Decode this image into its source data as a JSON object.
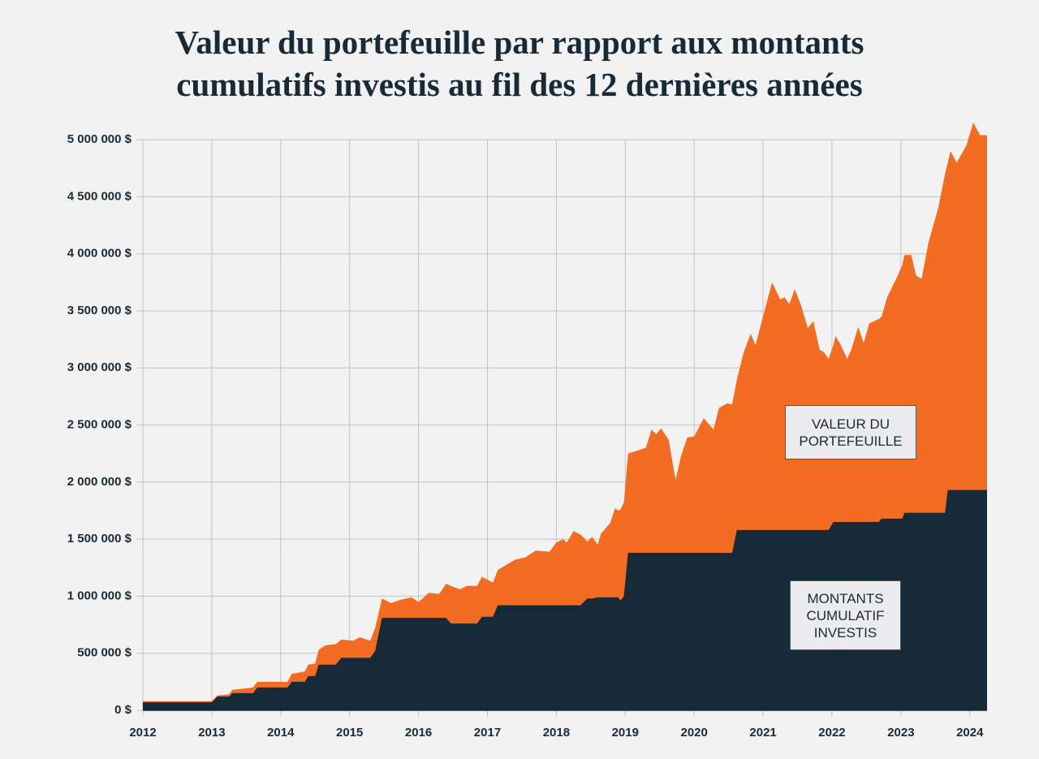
{
  "chart_data": {
    "type": "area",
    "title": "Valeur du portefeuille par rapport aux montants cumulatifs investis au fil des 12 dernières années",
    "x": [
      2012.0,
      2013.0,
      2013.08,
      2013.25,
      2013.3,
      2013.6,
      2013.66,
      2014.1,
      2014.16,
      2014.35,
      2014.4,
      2014.5,
      2014.55,
      2014.65,
      2014.8,
      2014.88,
      2015.05,
      2015.15,
      2015.3,
      2015.37,
      2015.47,
      2015.6,
      2015.75,
      2015.9,
      2016.0,
      2016.15,
      2016.3,
      2016.4,
      2016.47,
      2016.6,
      2016.7,
      2016.85,
      2016.92,
      2017.08,
      2017.15,
      2017.4,
      2017.55,
      2017.7,
      2017.9,
      2018.0,
      2018.1,
      2018.15,
      2018.25,
      2018.35,
      2018.45,
      2018.52,
      2018.6,
      2018.65,
      2018.78,
      2018.85,
      2018.9,
      2018.93,
      2018.98,
      2019.04,
      2019.3,
      2019.38,
      2019.45,
      2019.52,
      2019.63,
      2019.73,
      2019.81,
      2019.9,
      2020.0,
      2020.14,
      2020.28,
      2020.36,
      2020.48,
      2020.55,
      2020.62,
      2020.72,
      2020.82,
      2020.89,
      2021.13,
      2021.25,
      2021.31,
      2021.38,
      2021.46,
      2021.55,
      2021.65,
      2021.73,
      2021.82,
      2021.88,
      2021.95,
      2022.02,
      2022.05,
      2022.13,
      2022.22,
      2022.28,
      2022.38,
      2022.46,
      2022.54,
      2022.68,
      2022.72,
      2022.8,
      2022.93,
      2023.02,
      2023.05,
      2023.15,
      2023.22,
      2023.3,
      2023.4,
      2023.54,
      2023.64,
      2023.68,
      2023.72,
      2023.81,
      2023.95,
      2024.05,
      2024.15,
      2024.25
    ],
    "series": [
      {
        "name": "VALEUR DU PORTEFEUILLE",
        "color": "#f26d21",
        "values": [
          80000,
          80000,
          130000,
          140000,
          180000,
          200000,
          250000,
          250000,
          320000,
          340000,
          400000,
          410000,
          530000,
          570000,
          580000,
          620000,
          610000,
          640000,
          610000,
          720000,
          980000,
          940000,
          970000,
          990000,
          950000,
          1030000,
          1020000,
          1110000,
          1090000,
          1060000,
          1090000,
          1090000,
          1170000,
          1120000,
          1230000,
          1320000,
          1340000,
          1400000,
          1390000,
          1470000,
          1500000,
          1470000,
          1570000,
          1540000,
          1480000,
          1520000,
          1450000,
          1550000,
          1640000,
          1770000,
          1750000,
          1760000,
          1820000,
          2250000,
          2300000,
          2460000,
          2420000,
          2470000,
          2370000,
          2020000,
          2230000,
          2390000,
          2400000,
          2560000,
          2460000,
          2650000,
          2690000,
          2680000,
          2900000,
          3140000,
          3300000,
          3200000,
          3750000,
          3600000,
          3620000,
          3560000,
          3690000,
          3550000,
          3350000,
          3410000,
          3160000,
          3140000,
          3080000,
          3200000,
          3280000,
          3200000,
          3080000,
          3160000,
          3360000,
          3220000,
          3390000,
          3430000,
          3450000,
          3620000,
          3780000,
          3900000,
          3990000,
          3990000,
          3810000,
          3780000,
          4100000,
          4400000,
          4700000,
          4800000,
          4900000,
          4800000,
          4950000,
          5150000,
          5040000,
          5040000
        ]
      },
      {
        "name": "MONTANTS CUMULATIF INVESTIS",
        "color": "#172a38",
        "values": [
          70000,
          70000,
          120000,
          120000,
          150000,
          150000,
          200000,
          200000,
          250000,
          250000,
          300000,
          300000,
          400000,
          400000,
          400000,
          460000,
          460000,
          460000,
          460000,
          520000,
          810000,
          810000,
          810000,
          810000,
          810000,
          810000,
          810000,
          810000,
          760000,
          760000,
          760000,
          760000,
          820000,
          820000,
          920000,
          920000,
          920000,
          920000,
          920000,
          920000,
          920000,
          920000,
          920000,
          920000,
          980000,
          980000,
          990000,
          990000,
          990000,
          990000,
          990000,
          960000,
          1000000,
          1380000,
          1380000,
          1380000,
          1380000,
          1380000,
          1380000,
          1380000,
          1380000,
          1380000,
          1380000,
          1380000,
          1380000,
          1380000,
          1380000,
          1380000,
          1580000,
          1580000,
          1580000,
          1580000,
          1580000,
          1580000,
          1580000,
          1580000,
          1580000,
          1580000,
          1580000,
          1580000,
          1580000,
          1580000,
          1580000,
          1650000,
          1650000,
          1650000,
          1650000,
          1650000,
          1650000,
          1650000,
          1650000,
          1650000,
          1680000,
          1680000,
          1680000,
          1680000,
          1730000,
          1730000,
          1730000,
          1730000,
          1730000,
          1730000,
          1730000,
          1930000,
          1930000,
          1930000,
          1930000,
          1930000,
          1930000,
          1930000
        ]
      }
    ],
    "xlim": [
      2012,
      2024.25
    ],
    "xticks": [
      2012,
      2013,
      2014,
      2015,
      2016,
      2017,
      2018,
      2019,
      2020,
      2021,
      2022,
      2023,
      2024
    ],
    "ylim": [
      0,
      5200000
    ],
    "yticks": [
      {
        "value": 0,
        "label": "0 $"
      },
      {
        "value": 500000,
        "label": "500 000 $"
      },
      {
        "value": 1000000,
        "label": "1 000 000 $"
      },
      {
        "value": 1500000,
        "label": "1 500 000 $"
      },
      {
        "value": 2000000,
        "label": "2 000 000 $"
      },
      {
        "value": 2500000,
        "label": "2 500 000 $"
      },
      {
        "value": 3000000,
        "label": "3 000 000 $"
      },
      {
        "value": 3500000,
        "label": "3 500 000 $"
      },
      {
        "value": 4000000,
        "label": "4 000 000 $"
      },
      {
        "value": 4500000,
        "label": "4 500 000 $"
      },
      {
        "value": 5000000,
        "label": "5 000 000 $"
      }
    ],
    "grid": true
  }
}
